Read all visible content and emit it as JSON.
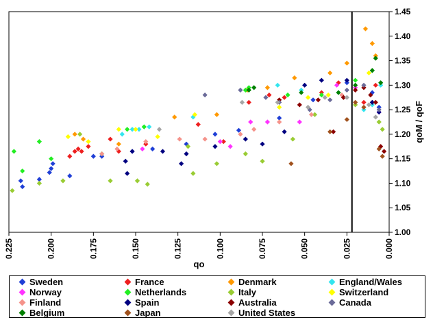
{
  "chart_data": {
    "type": "scatter",
    "xlabel": "qo",
    "ylabel": "qoM / qoF",
    "x_reversed": true,
    "xlim": [
      0.225,
      0.0
    ],
    "ylim": [
      1.0,
      1.45
    ],
    "x_ticks": [
      "0.225",
      "0.200",
      "0.175",
      "0.150",
      "0.125",
      "0.100",
      "0.075",
      "0.050",
      "0.025",
      "0.000"
    ],
    "y_ticks": [
      "1.00",
      "1.05",
      "1.10",
      "1.15",
      "1.20",
      "1.25",
      "1.30",
      "1.35",
      "1.40",
      "1.45"
    ],
    "y_axis_position": "right",
    "grid": false,
    "legend_position": "bottom",
    "vertical_line_x": 0.022,
    "series": [
      {
        "name": "Sweden",
        "color": "#1f3fd6",
        "points": [
          [
            0.218,
            1.105
          ],
          [
            0.217,
            1.093
          ],
          [
            0.207,
            1.108
          ],
          [
            0.201,
            1.122
          ],
          [
            0.2,
            1.13
          ],
          [
            0.199,
            1.14
          ],
          [
            0.189,
            1.115
          ],
          [
            0.175,
            1.155
          ],
          [
            0.17,
            1.155
          ],
          [
            0.152,
            1.165
          ],
          [
            0.14,
            1.17
          ],
          [
            0.12,
            1.18
          ],
          [
            0.103,
            1.2
          ],
          [
            0.089,
            1.208
          ],
          [
            0.065,
            1.233
          ],
          [
            0.045,
            1.27
          ],
          [
            0.025,
            1.305
          ],
          [
            0.01,
            1.285
          ],
          [
            0.006,
            1.255
          ]
        ]
      },
      {
        "name": "France",
        "color": "#ee1f1f",
        "points": [
          [
            0.189,
            1.155
          ],
          [
            0.186,
            1.165
          ],
          [
            0.184,
            1.17
          ],
          [
            0.182,
            1.165
          ],
          [
            0.178,
            1.175
          ],
          [
            0.165,
            1.19
          ],
          [
            0.16,
            1.165
          ],
          [
            0.144,
            1.18
          ],
          [
            0.113,
            1.22
          ],
          [
            0.098,
            1.185
          ],
          [
            0.083,
            1.265
          ],
          [
            0.071,
            1.28
          ],
          [
            0.062,
            1.275
          ],
          [
            0.04,
            1.285
          ],
          [
            0.03,
            1.305
          ],
          [
            0.015,
            1.265
          ],
          [
            0.008,
            1.3
          ]
        ]
      },
      {
        "name": "Denmark",
        "color": "#ff9900",
        "points": [
          [
            0.186,
            1.2
          ],
          [
            0.181,
            1.19
          ],
          [
            0.16,
            1.18
          ],
          [
            0.127,
            1.235
          ],
          [
            0.102,
            1.24
          ],
          [
            0.084,
            1.29
          ],
          [
            0.072,
            1.295
          ],
          [
            0.056,
            1.315
          ],
          [
            0.035,
            1.325
          ],
          [
            0.025,
            1.345
          ],
          [
            0.014,
            1.415
          ],
          [
            0.01,
            1.385
          ],
          [
            0.008,
            1.36
          ]
        ]
      },
      {
        "name": "England/Wales",
        "color": "#33e5ef",
        "points": [
          [
            0.158,
            1.2
          ],
          [
            0.152,
            1.21
          ],
          [
            0.148,
            1.21
          ],
          [
            0.145,
            1.215
          ],
          [
            0.142,
            1.215
          ],
          [
            0.116,
            1.235
          ],
          [
            0.066,
            1.3
          ],
          [
            0.052,
            1.29
          ],
          [
            0.03,
            1.285
          ],
          [
            0.015,
            1.25
          ],
          [
            0.01,
            1.26
          ],
          [
            0.005,
            1.3
          ]
        ]
      },
      {
        "name": "Norway",
        "color": "#ff33ff",
        "points": [
          [
            0.146,
            1.17
          ],
          [
            0.1,
            1.185
          ],
          [
            0.094,
            1.175
          ],
          [
            0.082,
            1.225
          ],
          [
            0.072,
            1.225
          ],
          [
            0.053,
            1.225
          ],
          [
            0.031,
            1.3
          ],
          [
            0.02,
            1.295
          ],
          [
            0.006,
            1.245
          ]
        ]
      },
      {
        "name": "Netherlands",
        "color": "#22ee22",
        "points": [
          [
            0.222,
            1.165
          ],
          [
            0.217,
            1.125
          ],
          [
            0.207,
            1.185
          ],
          [
            0.2,
            1.15
          ],
          [
            0.17,
            1.16
          ],
          [
            0.155,
            1.21
          ],
          [
            0.145,
            1.215
          ],
          [
            0.085,
            1.29
          ],
          [
            0.083,
            1.295
          ],
          [
            0.06,
            1.28
          ],
          [
            0.04,
            1.28
          ],
          [
            0.02,
            1.31
          ],
          [
            0.01,
            1.33
          ]
        ]
      },
      {
        "name": "Italy",
        "color": "#99cc33",
        "points": [
          [
            0.223,
            1.085
          ],
          [
            0.207,
            1.1
          ],
          [
            0.193,
            1.105
          ],
          [
            0.183,
            1.2
          ],
          [
            0.165,
            1.105
          ],
          [
            0.149,
            1.105
          ],
          [
            0.143,
            1.098
          ],
          [
            0.119,
            1.175
          ],
          [
            0.116,
            1.12
          ],
          [
            0.102,
            1.14
          ],
          [
            0.085,
            1.16
          ],
          [
            0.075,
            1.145
          ],
          [
            0.057,
            1.19
          ],
          [
            0.044,
            1.24
          ],
          [
            0.02,
            1.26
          ],
          [
            0.006,
            1.225
          ],
          [
            0.004,
            1.21
          ]
        ]
      },
      {
        "name": "Switzerland",
        "color": "#ffff00",
        "points": [
          [
            0.19,
            1.195
          ],
          [
            0.178,
            1.185
          ],
          [
            0.16,
            1.21
          ],
          [
            0.15,
            1.21
          ],
          [
            0.137,
            1.195
          ],
          [
            0.115,
            1.24
          ],
          [
            0.065,
            1.255
          ],
          [
            0.048,
            1.275
          ],
          [
            0.036,
            1.28
          ],
          [
            0.012,
            1.325
          ]
        ]
      },
      {
        "name": "Finland",
        "color": "#f5938b",
        "points": [
          [
            0.17,
            1.16
          ],
          [
            0.161,
            1.17
          ],
          [
            0.144,
            1.185
          ],
          [
            0.124,
            1.19
          ],
          [
            0.109,
            1.19
          ],
          [
            0.088,
            1.2
          ],
          [
            0.08,
            1.21
          ],
          [
            0.065,
            1.225
          ],
          [
            0.046,
            1.24
          ],
          [
            0.028,
            1.28
          ],
          [
            0.01,
            1.265
          ]
        ]
      },
      {
        "name": "Spain",
        "color": "#000080",
        "points": [
          [
            0.156,
            1.145
          ],
          [
            0.155,
            1.12
          ],
          [
            0.152,
            1.165
          ],
          [
            0.134,
            1.165
          ],
          [
            0.123,
            1.14
          ],
          [
            0.12,
            1.16
          ],
          [
            0.103,
            1.175
          ],
          [
            0.085,
            1.19
          ],
          [
            0.075,
            1.18
          ],
          [
            0.062,
            1.205
          ],
          [
            0.05,
            1.3
          ],
          [
            0.04,
            1.31
          ],
          [
            0.025,
            1.31
          ],
          [
            0.01,
            1.265
          ],
          [
            0.006,
            1.245
          ]
        ]
      },
      {
        "name": "Australia",
        "color": "#8b0000",
        "points": [
          [
            0.065,
            1.27
          ],
          [
            0.053,
            1.26
          ],
          [
            0.042,
            1.27
          ],
          [
            0.033,
            1.205
          ],
          [
            0.027,
            1.275
          ],
          [
            0.02,
            1.29
          ],
          [
            0.015,
            1.295
          ],
          [
            0.011,
            1.28
          ],
          [
            0.008,
            1.265
          ],
          [
            0.005,
            1.175
          ],
          [
            0.003,
            1.165
          ]
        ]
      },
      {
        "name": "Canada",
        "color": "#6b6b99",
        "points": [
          [
            0.109,
            1.28
          ],
          [
            0.088,
            1.29
          ],
          [
            0.073,
            1.275
          ],
          [
            0.065,
            1.265
          ],
          [
            0.047,
            1.25
          ],
          [
            0.035,
            1.27
          ],
          [
            0.025,
            1.29
          ],
          [
            0.015,
            1.3
          ],
          [
            0.006,
            1.25
          ]
        ]
      },
      {
        "name": "Belgium",
        "color": "#008000",
        "points": [
          [
            0.083,
            1.29
          ],
          [
            0.08,
            1.295
          ],
          [
            0.052,
            1.285
          ],
          [
            0.03,
            1.285
          ],
          [
            0.02,
            1.3
          ],
          [
            0.01,
            1.33
          ],
          [
            0.008,
            1.355
          ],
          [
            0.005,
            1.305
          ]
        ]
      },
      {
        "name": "Japan",
        "color": "#a0521e",
        "points": [
          [
            0.058,
            1.14
          ],
          [
            0.035,
            1.205
          ],
          [
            0.025,
            1.23
          ],
          [
            0.02,
            1.265
          ],
          [
            0.015,
            1.255
          ],
          [
            0.006,
            1.17
          ],
          [
            0.004,
            1.155
          ]
        ]
      },
      {
        "name": "United States",
        "color": "#a6a6a6",
        "points": [
          [
            0.136,
            1.21
          ],
          [
            0.087,
            1.265
          ],
          [
            0.066,
            1.265
          ],
          [
            0.048,
            1.255
          ],
          [
            0.038,
            1.275
          ],
          [
            0.025,
            1.275
          ],
          [
            0.012,
            1.26
          ],
          [
            0.008,
            1.235
          ]
        ]
      }
    ]
  }
}
